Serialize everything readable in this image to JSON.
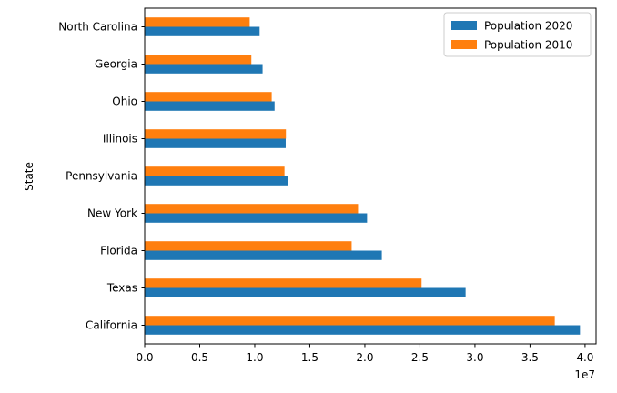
{
  "chart_data": {
    "type": "bar",
    "orientation": "horizontal",
    "categories": [
      "California",
      "Texas",
      "Florida",
      "New York",
      "Pennsylvania",
      "Illinois",
      "Ohio",
      "Georgia",
      "North Carolina"
    ],
    "series": [
      {
        "name": "Population 2020",
        "color": "#1f77b4",
        "values": [
          39540000,
          29150000,
          21540000,
          20200000,
          13000000,
          12810000,
          11800000,
          10710000,
          10440000
        ]
      },
      {
        "name": "Population 2010",
        "color": "#ff7f0e",
        "values": [
          37250000,
          25150000,
          18800000,
          19380000,
          12700000,
          12830000,
          11540000,
          9690000,
          9540000
        ]
      }
    ],
    "xlim": [
      0,
      41000000
    ],
    "x_ticks": [
      0,
      5000000,
      10000000,
      15000000,
      20000000,
      25000000,
      30000000,
      35000000,
      40000000
    ],
    "x_tick_labels": [
      "0.0",
      "0.5",
      "1.0",
      "1.5",
      "2.0",
      "2.5",
      "3.0",
      "3.5",
      "4.0"
    ],
    "x_offset_label": "1e7",
    "ylabel": "State",
    "xlabel": "",
    "legend_position": "top-right",
    "grid": false
  }
}
